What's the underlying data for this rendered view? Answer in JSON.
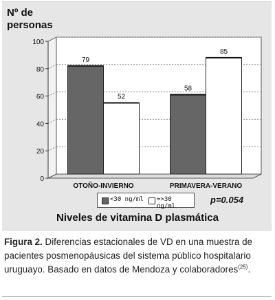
{
  "chart_data": {
    "type": "bar",
    "ylabel": [
      "Nº de",
      "personas"
    ],
    "xlabel": "Niveles de vitamina D plasmática",
    "categories": [
      "OTOÑO-INVIERNO",
      "PRIMAVERA-VERANO"
    ],
    "series": [
      {
        "name": "<30 ng/ml",
        "values": [
          79,
          58
        ],
        "color": "#666666"
      },
      {
        "name": "=>30 ng/ml",
        "values": [
          52,
          85
        ],
        "color": "#ffffff"
      }
    ],
    "ylim": [
      0,
      100
    ],
    "yticks": [
      0,
      20,
      40,
      60,
      80,
      100
    ],
    "grid": true,
    "legend": "bottom-center",
    "annotation": "p=0.054"
  },
  "caption": {
    "label": "Figura 2.",
    "text": " Diferencias estacionales de VD en una muestra de pacientes posmenopáusicas del sistema público hospitalario uruguayo. Basado en datos de Mendoza y colaboradores",
    "reference": "(25)",
    "end": "."
  }
}
